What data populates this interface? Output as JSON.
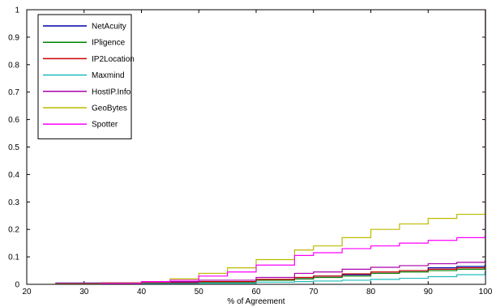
{
  "chart_data": {
    "type": "line",
    "title": "",
    "xlabel": "% of Agreement",
    "ylabel": "",
    "xlim": [
      20,
      100
    ],
    "ylim": [
      0,
      1
    ],
    "x_ticks": [
      "20",
      "30",
      "40",
      "50",
      "60",
      "70",
      "80",
      "90",
      "100"
    ],
    "y_ticks": [
      "0",
      "0.1",
      "0.2",
      "0.3",
      "0.4",
      "0.5",
      "0.6",
      "0.7",
      "0.8",
      "0.9",
      "1"
    ],
    "grid": false,
    "legend_position": "top-left",
    "series": [
      {
        "name": "NetAcuity",
        "color": "#0000aa",
        "x": [
          25,
          33,
          40,
          50,
          60,
          66.7,
          70,
          75,
          80,
          85,
          90,
          95,
          99.9,
          100
        ],
        "y": [
          0.005,
          0.005,
          0.007,
          0.01,
          0.015,
          0.02,
          0.03,
          0.035,
          0.04,
          0.05,
          0.06,
          0.065,
          0.07,
          1.0
        ]
      },
      {
        "name": "IPligence",
        "color": "#008000",
        "x": [
          25,
          33,
          40,
          50,
          60,
          66.7,
          70,
          75,
          80,
          85,
          90,
          95,
          99.9,
          100
        ],
        "y": [
          0.002,
          0.003,
          0.005,
          0.008,
          0.015,
          0.02,
          0.025,
          0.03,
          0.04,
          0.045,
          0.05,
          0.055,
          0.06,
          1.0
        ]
      },
      {
        "name": "IP2Location",
        "color": "#cc0000",
        "x": [
          25,
          33,
          40,
          50,
          60,
          66.7,
          70,
          75,
          80,
          85,
          90,
          95,
          99.9,
          100
        ],
        "y": [
          0.003,
          0.004,
          0.006,
          0.01,
          0.018,
          0.025,
          0.03,
          0.038,
          0.045,
          0.05,
          0.055,
          0.06,
          0.065,
          1.0
        ]
      },
      {
        "name": "Maxmind",
        "color": "#22bbbb",
        "x": [
          25,
          33,
          40,
          50,
          60,
          66.7,
          70,
          75,
          80,
          85,
          90,
          95,
          99.9,
          100
        ],
        "y": [
          0.001,
          0.002,
          0.003,
          0.004,
          0.008,
          0.01,
          0.012,
          0.015,
          0.018,
          0.022,
          0.028,
          0.035,
          0.045,
          1.0
        ]
      },
      {
        "name": "HostIP.Info",
        "color": "#aa00aa",
        "x": [
          25,
          33,
          40,
          50,
          60,
          66.7,
          70,
          75,
          80,
          85,
          90,
          95,
          99.9,
          100
        ],
        "y": [
          0.004,
          0.006,
          0.01,
          0.015,
          0.025,
          0.04,
          0.045,
          0.055,
          0.062,
          0.068,
          0.075,
          0.08,
          0.085,
          1.0
        ]
      },
      {
        "name": "GeoBytes",
        "color": "#bbbb00",
        "x": [
          25,
          33,
          40,
          45,
          50,
          55,
          60,
          66.7,
          70,
          75,
          80,
          85,
          90,
          95,
          99.9,
          100
        ],
        "y": [
          0.002,
          0.005,
          0.01,
          0.02,
          0.04,
          0.06,
          0.09,
          0.125,
          0.14,
          0.17,
          0.2,
          0.22,
          0.24,
          0.255,
          0.265,
          1.0
        ]
      },
      {
        "name": "Spotter",
        "color": "#ff00ff",
        "x": [
          25,
          33,
          40,
          45,
          50,
          55,
          60,
          66.7,
          70,
          75,
          80,
          85,
          90,
          95,
          99.9,
          100
        ],
        "y": [
          0.0,
          0.003,
          0.01,
          0.015,
          0.03,
          0.045,
          0.07,
          0.105,
          0.115,
          0.13,
          0.14,
          0.15,
          0.16,
          0.17,
          0.175,
          1.0
        ]
      }
    ]
  }
}
